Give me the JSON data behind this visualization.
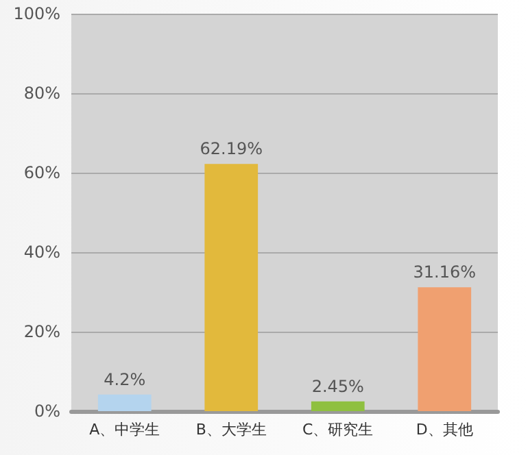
{
  "chart_data": {
    "type": "bar",
    "categories": [
      "A、中学生",
      "B、大学生",
      "C、研究生",
      "D、其他"
    ],
    "values": [
      4.2,
      62.19,
      2.45,
      31.16
    ],
    "colors": [
      "#b4d4ee",
      "#e2b93c",
      "#8fc040",
      "#f0a070"
    ],
    "value_labels": [
      "4.2%",
      "62.19%",
      "2.45%",
      "31.16%"
    ],
    "ylim": [
      0,
      100
    ],
    "yticks": [
      {
        "value": 0,
        "label": "0%"
      },
      {
        "value": 20,
        "label": "20%"
      },
      {
        "value": 40,
        "label": "40%"
      },
      {
        "value": 60,
        "label": "60%"
      },
      {
        "value": 80,
        "label": "80%"
      },
      {
        "value": 100,
        "label": "100%"
      }
    ],
    "grid": "y"
  }
}
